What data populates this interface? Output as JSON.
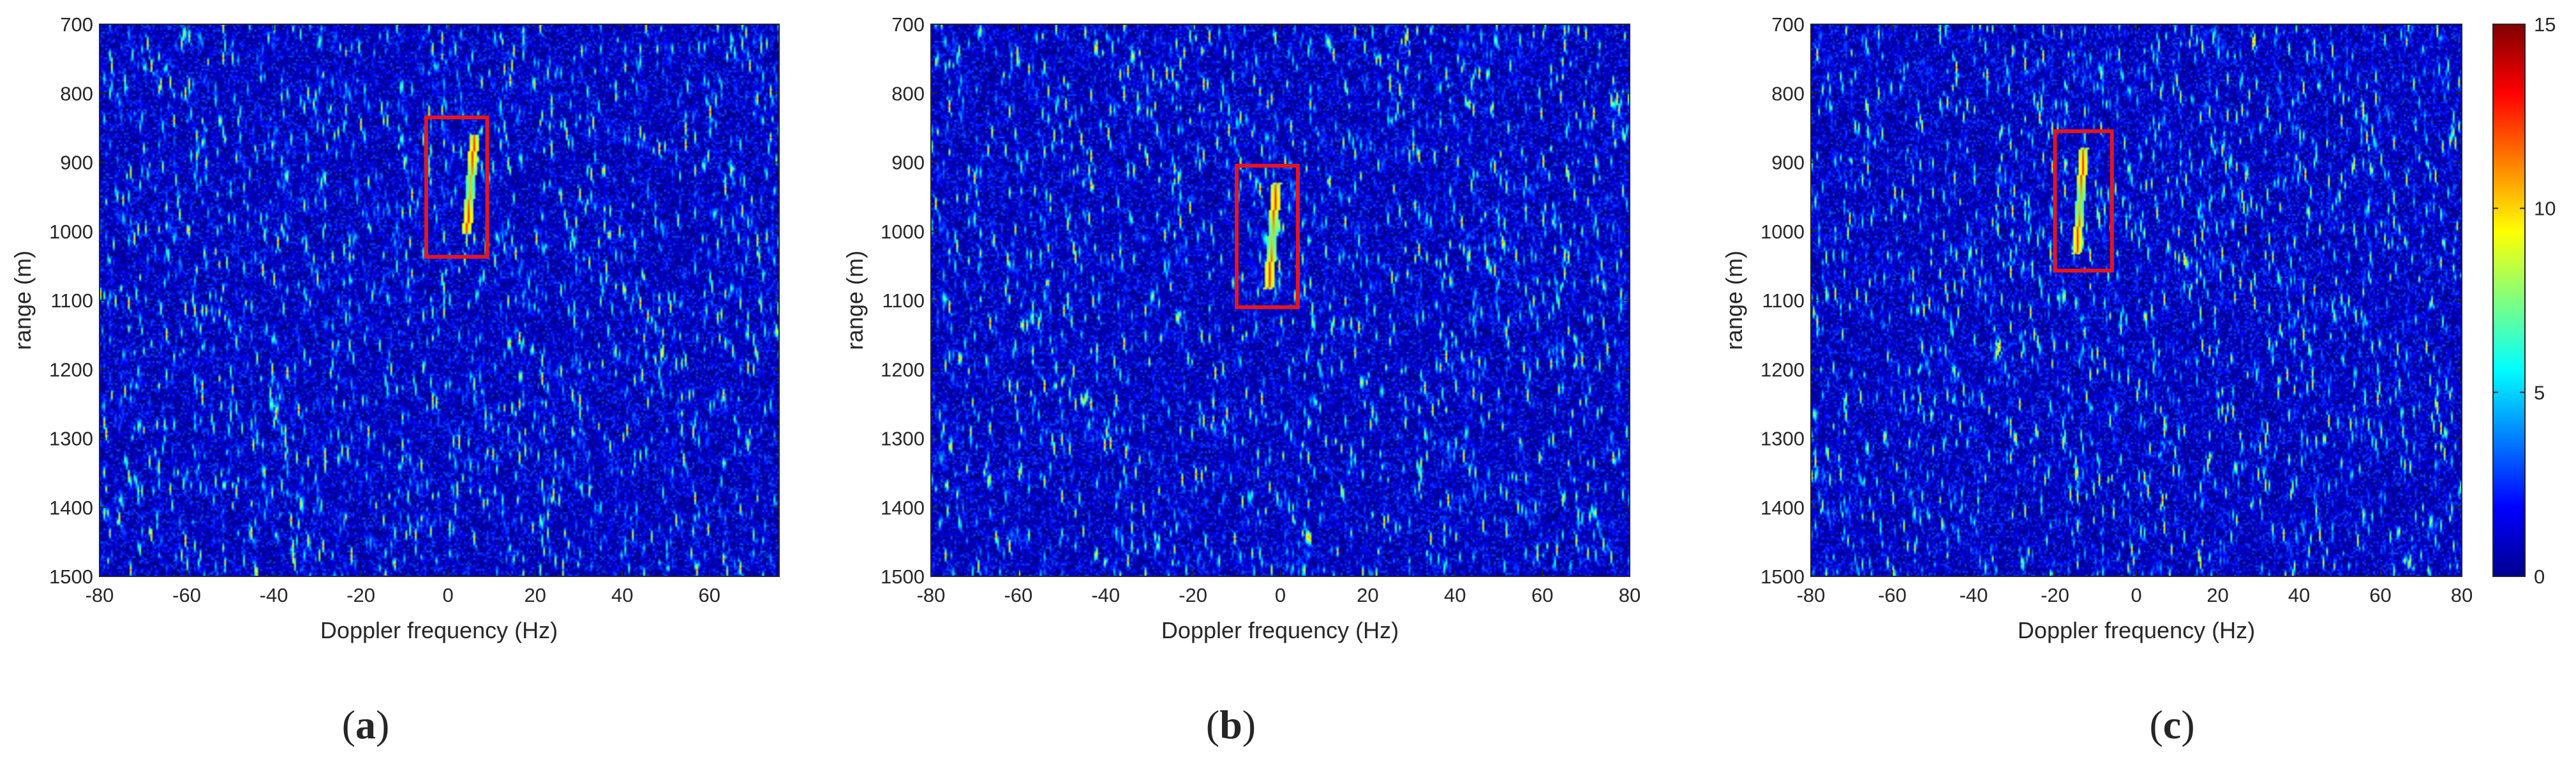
{
  "chart_data": [
    {
      "type": "heatmap",
      "panel_label": "a",
      "xlabel": "Doppler frequency (Hz)",
      "ylabel": "range (m)",
      "xlim": [
        -80,
        76
      ],
      "ylim": [
        700,
        1500
      ],
      "y_reversed": true,
      "xticks": [
        -80,
        -60,
        -40,
        -20,
        0,
        20,
        40,
        60
      ],
      "yticks": [
        700,
        800,
        900,
        1000,
        1100,
        1200,
        1300,
        1400,
        1500
      ],
      "clim": [
        0,
        15
      ],
      "target": {
        "doppler_hz": 5,
        "range_start_m": 860,
        "range_end_m": 1000
      },
      "highlight_box": {
        "doppler_hz": [
          -5,
          9
        ],
        "range_m": [
          835,
          1037
        ]
      }
    },
    {
      "type": "heatmap",
      "panel_label": "b",
      "xlabel": "Doppler frequency (Hz)",
      "ylabel": "range (m)",
      "xlim": [
        -80,
        80
      ],
      "ylim": [
        700,
        1500
      ],
      "y_reversed": true,
      "xticks": [
        -80,
        -60,
        -40,
        -20,
        0,
        20,
        40,
        60,
        80
      ],
      "yticks": [
        700,
        800,
        900,
        1000,
        1100,
        1200,
        1300,
        1400,
        1500
      ],
      "clim": [
        0,
        15
      ],
      "target": {
        "doppler_hz": -2,
        "range_start_m": 930,
        "range_end_m": 1080
      },
      "highlight_box": {
        "doppler_hz": [
          -10,
          4
        ],
        "range_m": [
          905,
          1110
        ]
      }
    },
    {
      "type": "heatmap",
      "panel_label": "c",
      "xlabel": "Doppler frequency (Hz)",
      "ylabel": "range (m)",
      "xlim": [
        -80,
        80
      ],
      "ylim": [
        700,
        1500
      ],
      "y_reversed": true,
      "xticks": [
        -80,
        -60,
        -40,
        -20,
        0,
        20,
        40,
        60,
        80
      ],
      "yticks": [
        700,
        800,
        900,
        1000,
        1100,
        1200,
        1300,
        1400,
        1500
      ],
      "clim": [
        0,
        15
      ],
      "target": {
        "doppler_hz": -14,
        "range_start_m": 880,
        "range_end_m": 1030
      },
      "highlight_box": {
        "doppler_hz": [
          -20,
          -6
        ],
        "range_m": [
          855,
          1057
        ]
      }
    }
  ],
  "colorbar": {
    "colormap": "jet",
    "ticks": [
      0,
      5,
      10,
      15
    ]
  },
  "colors": {
    "box": "#e8141c",
    "axis": "#262626",
    "background_low": "#00008f"
  }
}
